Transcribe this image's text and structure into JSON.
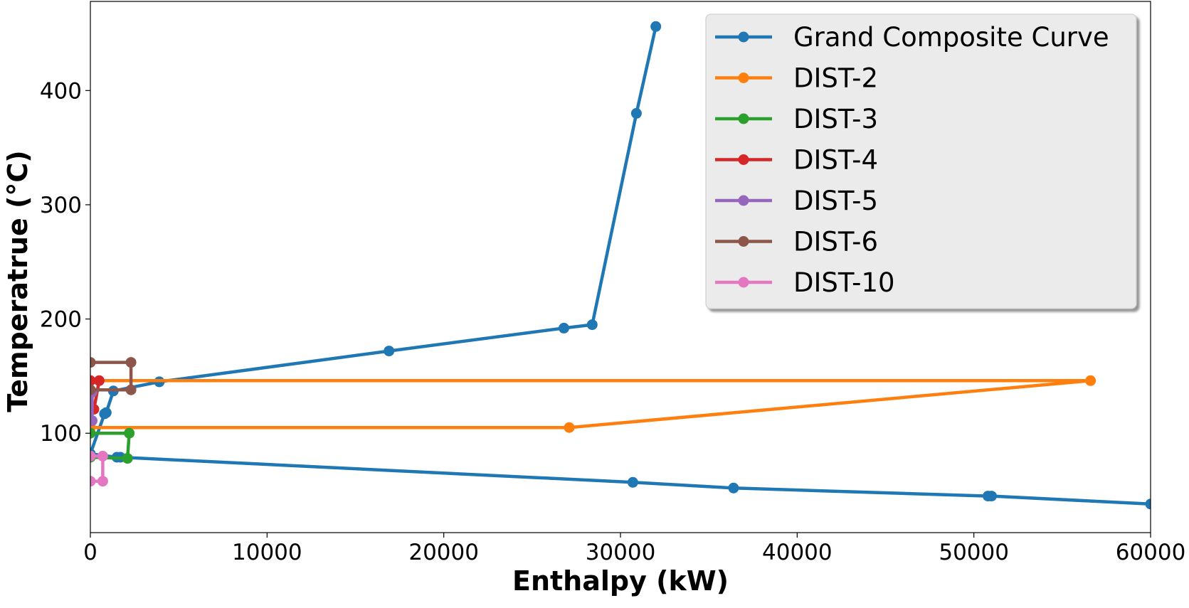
{
  "chart_data": {
    "type": "line",
    "xlabel": "Enthalpy (kW)",
    "ylabel": "Temperatrue (°C)",
    "xlim": [
      0,
      60000
    ],
    "ylim": [
      13,
      478
    ],
    "xticks": [
      0,
      10000,
      20000,
      30000,
      40000,
      50000,
      60000
    ],
    "yticks": [
      100,
      200,
      300,
      400
    ],
    "grid": false,
    "legend_position": "top-right",
    "series": [
      {
        "name": "Grand Composite Curve",
        "color": "#1f77b4",
        "points": [
          [
            32000,
            456
          ],
          [
            30900,
            380
          ],
          [
            28400,
            195
          ],
          [
            26800,
            192
          ],
          [
            16900,
            172
          ],
          [
            3900,
            145
          ],
          [
            1300,
            137
          ],
          [
            900,
            118
          ],
          [
            800,
            117
          ],
          [
            0,
            82
          ],
          [
            1500,
            79
          ],
          [
            1700,
            79
          ],
          [
            30700,
            57
          ],
          [
            36400,
            52
          ],
          [
            50800,
            45
          ],
          [
            51000,
            45
          ],
          [
            60000,
            38
          ]
        ]
      },
      {
        "name": "DIST-2",
        "color": "#ff7f0e",
        "points": [
          [
            0,
            146
          ],
          [
            56600,
            146
          ],
          [
            27100,
            105
          ],
          [
            0,
            105
          ]
        ]
      },
      {
        "name": "DIST-3",
        "color": "#2ca02c",
        "points": [
          [
            0,
            100
          ],
          [
            2200,
            100
          ],
          [
            2100,
            78
          ],
          [
            0,
            79
          ]
        ]
      },
      {
        "name": "DIST-4",
        "color": "#d62728",
        "points": [
          [
            0,
            146
          ],
          [
            500,
            146
          ],
          [
            200,
            121
          ],
          [
            0,
            121
          ]
        ]
      },
      {
        "name": "DIST-5",
        "color": "#9467bd",
        "points": [
          [
            0,
            136
          ],
          [
            100,
            136
          ],
          [
            100,
            111
          ],
          [
            0,
            111
          ]
        ]
      },
      {
        "name": "DIST-6",
        "color": "#8c564b",
        "points": [
          [
            0,
            162
          ],
          [
            2300,
            162
          ],
          [
            2300,
            138
          ],
          [
            0,
            138
          ]
        ]
      },
      {
        "name": "DIST-10",
        "color": "#e377c2",
        "points": [
          [
            0,
            80
          ],
          [
            700,
            80
          ],
          [
            700,
            58
          ],
          [
            0,
            58
          ]
        ]
      }
    ]
  }
}
